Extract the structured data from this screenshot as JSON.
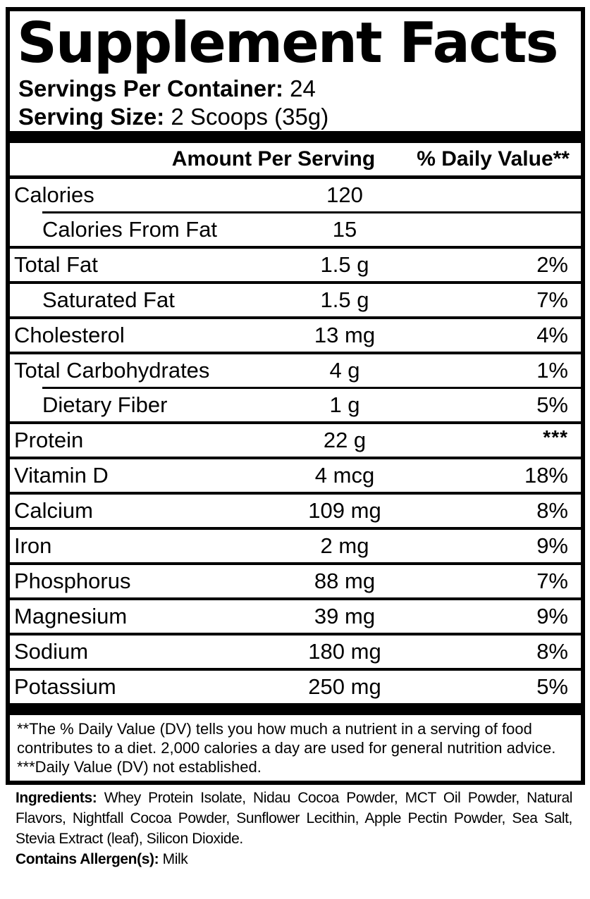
{
  "label": {
    "title": "Supplement Facts",
    "servings_per_container": {
      "label": "Servings Per Container:",
      "value": "24"
    },
    "serving_size": {
      "label": "Serving Size:",
      "value": "2 Scoops (35g)"
    },
    "header": {
      "amount": "Amount Per Serving",
      "daily_value": "% Daily Value**"
    },
    "rows": [
      {
        "name": "Calories",
        "amount": "120",
        "dv": "",
        "indent": false
      },
      {
        "name": "Calories From Fat",
        "amount": "15",
        "dv": "",
        "indent": true
      },
      {
        "name": "Total Fat",
        "amount": "1.5 g",
        "dv": "2%",
        "indent": false
      },
      {
        "name": "Saturated Fat",
        "amount": "1.5 g",
        "dv": "7%",
        "indent": true
      },
      {
        "name": "Cholesterol",
        "amount": "13 mg",
        "dv": "4%",
        "indent": false
      },
      {
        "name": "Total Carbohydrates",
        "amount": "4 g",
        "dv": "1%",
        "indent": false
      },
      {
        "name": "Dietary Fiber",
        "amount": "1 g",
        "dv": "5%",
        "indent": true
      },
      {
        "name": "Protein",
        "amount": "22 g",
        "dv": "***",
        "indent": false
      },
      {
        "name": "Vitamin D",
        "amount": "4 mcg",
        "dv": "18%",
        "indent": false
      },
      {
        "name": "Calcium",
        "amount": "109 mg",
        "dv": "8%",
        "indent": false
      },
      {
        "name": "Iron",
        "amount": "2 mg",
        "dv": "9%",
        "indent": false
      },
      {
        "name": "Phosphorus",
        "amount": "88 mg",
        "dv": "7%",
        "indent": false
      },
      {
        "name": "Magnesium",
        "amount": "39 mg",
        "dv": "9%",
        "indent": false
      },
      {
        "name": "Sodium",
        "amount": "180 mg",
        "dv": "8%",
        "indent": false
      },
      {
        "name": "Potassium",
        "amount": "250 mg",
        "dv": "5%",
        "indent": false
      }
    ],
    "footnotes": {
      "daily_value_note": "**The % Daily Value (DV) tells you how much a nutrient in a serving of food contributes to a diet. 2,000 calories a day are used for general nutrition advice.",
      "not_established_note": "***Daily Value (DV) not established."
    },
    "ingredients": {
      "label": "Ingredients:",
      "text": "Whey Protein Isolate, Nidau Cocoa Powder, MCT Oil Powder, Natural Flavors, Nightfall Cocoa Powder, Sunflower Lecithin, Apple Pectin Powder, Sea Salt, Stevia Extract (leaf), Silicon Dioxide."
    },
    "allergen": {
      "label": "Contains Allergen(s):",
      "value": "Milk"
    },
    "colors": {
      "text": "#000000",
      "background": "#ffffff",
      "border": "#000000"
    }
  }
}
